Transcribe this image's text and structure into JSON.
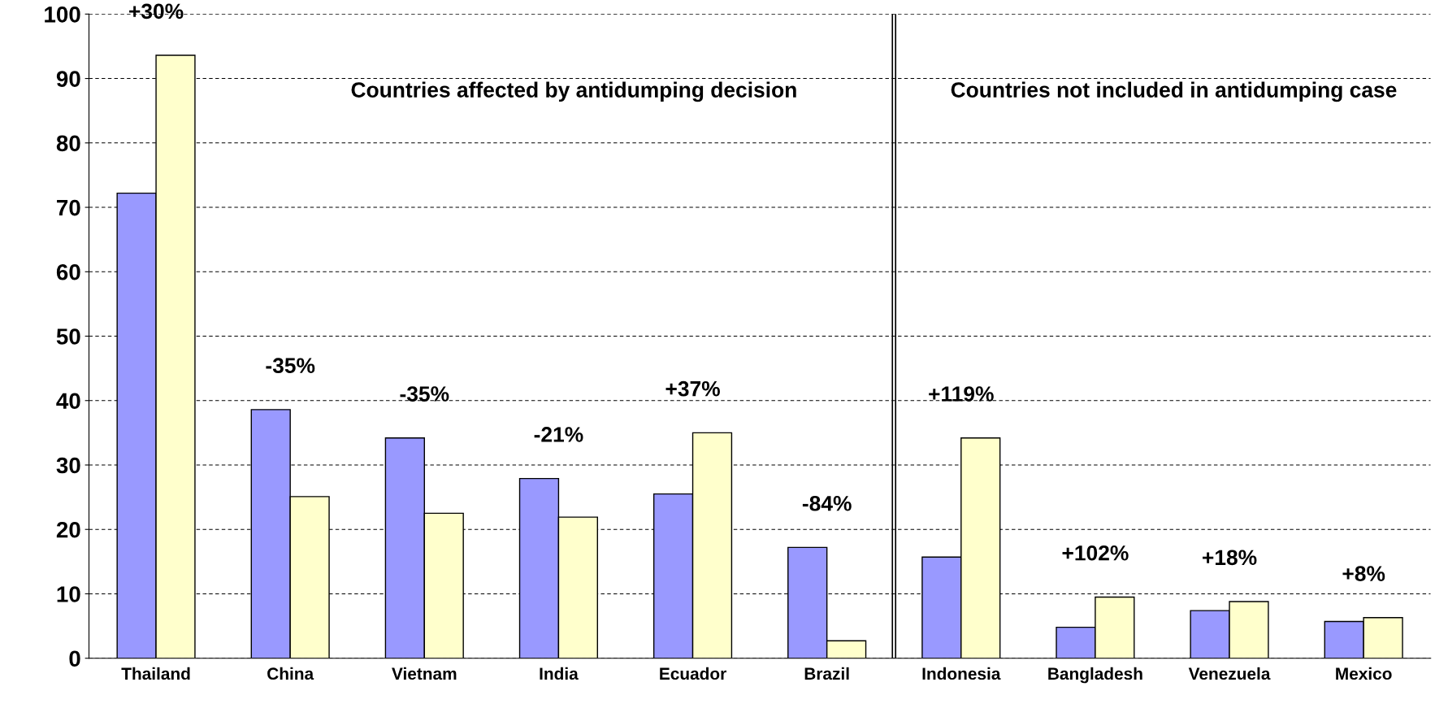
{
  "chart_data": {
    "type": "bar",
    "categories": [
      "Thailand",
      "China",
      "Vietnam",
      "India",
      "Ecuador",
      "Brazil",
      "Indonesia",
      "Bangladesh",
      "Venezuela",
      "Mexico"
    ],
    "series": [
      {
        "color": "#9999ff",
        "values": [
          72.2,
          38.6,
          34.2,
          27.9,
          25.5,
          17.2,
          15.7,
          4.8,
          7.4,
          5.7
        ]
      },
      {
        "color": "#ffffcc",
        "values": [
          93.6,
          25.1,
          22.5,
          21.9,
          35.0,
          2.7,
          34.2,
          9.5,
          8.8,
          6.3
        ]
      }
    ],
    "ylim": [
      0,
      100
    ],
    "yticks": [
      0,
      10,
      20,
      30,
      40,
      50,
      60,
      70,
      80,
      90,
      100
    ],
    "grid": "y",
    "annotations": [
      "+30%",
      "-35%",
      "-35%",
      "-21%",
      "+37%",
      "-84%",
      "+119%",
      "+102%",
      "+18%",
      "+8%",
      "Countries affected by antidumping decision",
      "Countries not included in antidumping case"
    ]
  }
}
